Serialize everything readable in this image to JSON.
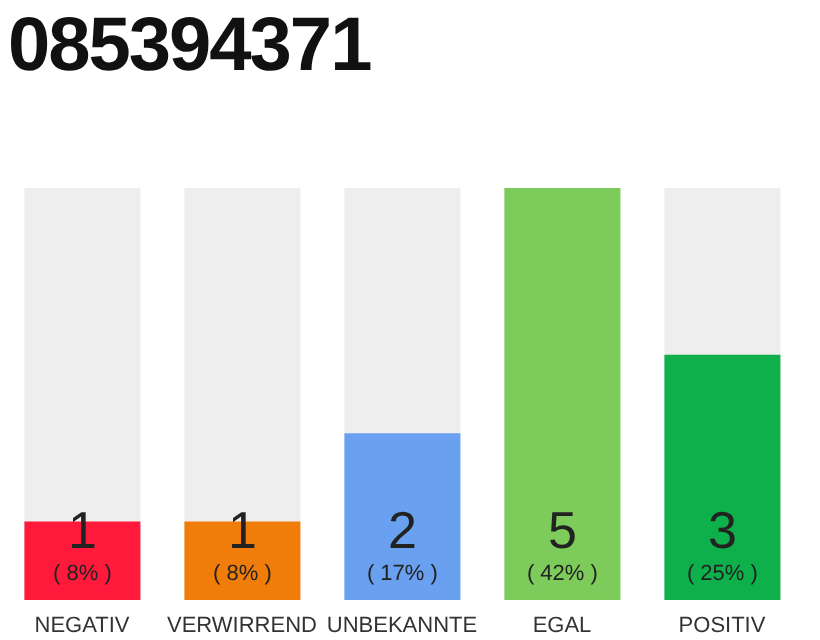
{
  "chart_data": {
    "type": "bar",
    "title": "085394371",
    "categories": [
      "NEGATIV",
      "VERWIRREND",
      "UNBEKANNTE",
      "EGAL",
      "POSITIV"
    ],
    "values": [
      8,
      8,
      17,
      42,
      25
    ],
    "colors": [
      "#ff1a3c",
      "#f07d0a",
      "#6aa0f0",
      "#7dcb5a",
      "#0db04b"
    ],
    "value_labels": [
      "( 8% )",
      "( 8% )",
      "( 17% )",
      "( 42% )",
      "( 25% )"
    ],
    "annotations": [
      "1",
      "1",
      "2",
      "5",
      "3"
    ],
    "tick_labels": "x"
  }
}
